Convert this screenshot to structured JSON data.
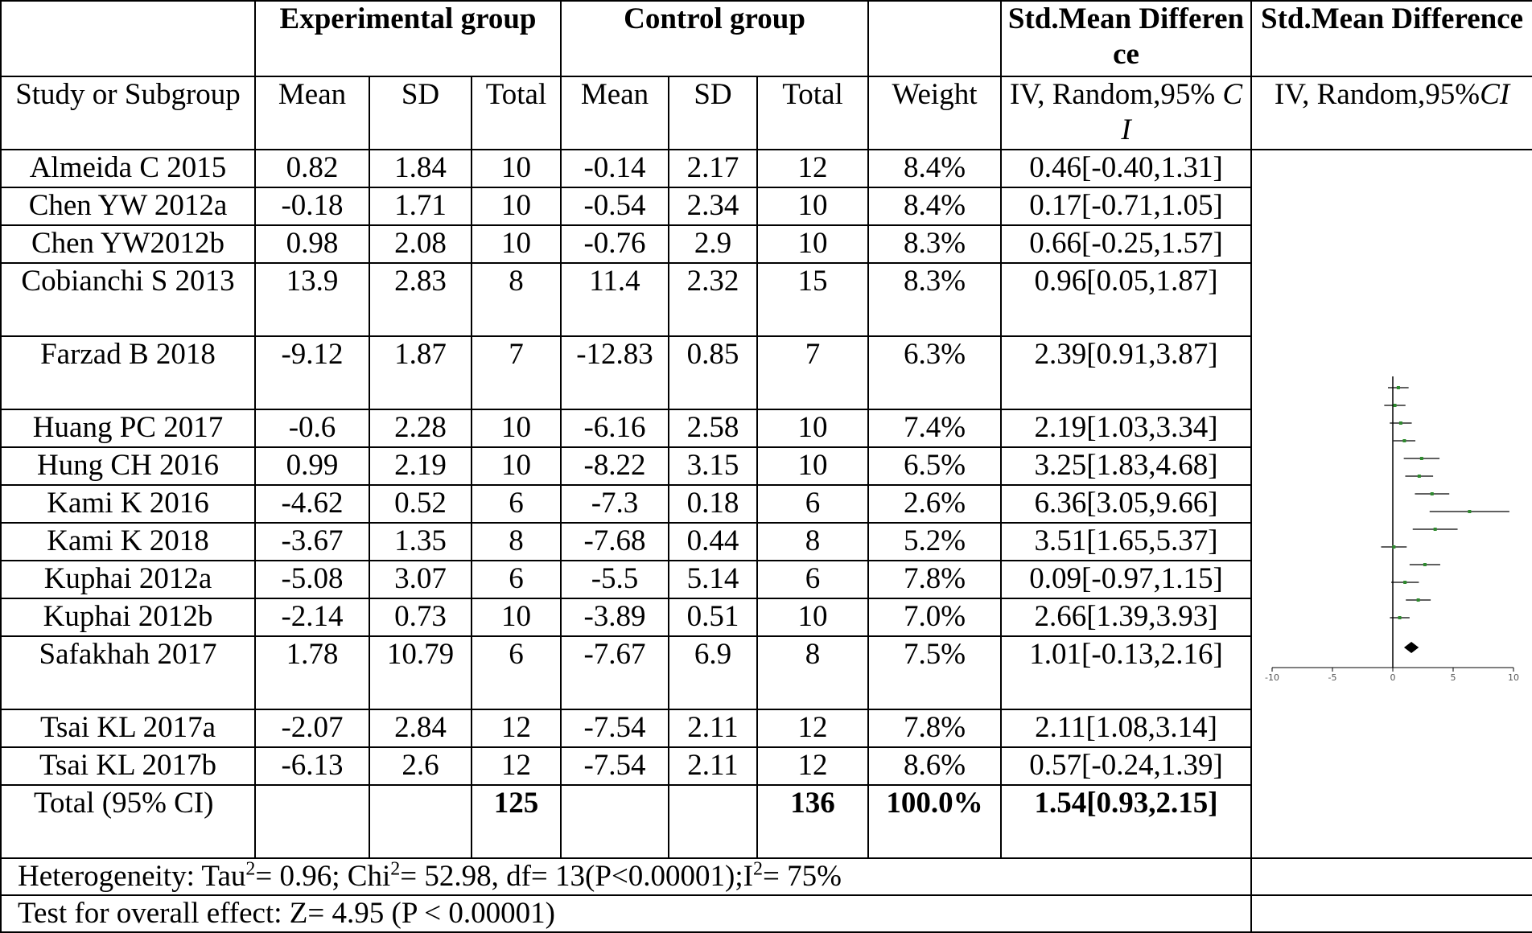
{
  "header": {
    "exp_group": "Experimental group",
    "ctrl_group": "Control group",
    "smd_col": "Std.Mean Difference",
    "smd_plot": "Std.Mean Difference",
    "study": "Study or Subgroup",
    "mean1": "Mean",
    "sd1": "SD",
    "total1": "Total",
    "mean2": "Mean",
    "sd2": "SD",
    "total2": "Total",
    "weight": "Weight",
    "iv1": "IV, Random,95% ",
    "iv1_ci": "CI",
    "iv2": "IV, Random,95%",
    "iv2_ci": "CI"
  },
  "rows": [
    {
      "study": "Almeida C 2015",
      "m1": "0.82",
      "sd1": "1.84",
      "n1": "10",
      "m2": "-0.14",
      "sd2": "2.17",
      "n2": "12",
      "weight": "8.4%",
      "smd": "0.46[-0.40,1.31]"
    },
    {
      "study": "Chen YW 2012a",
      "m1": "-0.18",
      "sd1": "1.71",
      "n1": "10",
      "m2": "-0.54",
      "sd2": "2.34",
      "n2": "10",
      "weight": "8.4%",
      "smd": "0.17[-0.71,1.05]"
    },
    {
      "study": "Chen YW2012b",
      "m1": "0.98",
      "sd1": "2.08",
      "n1": "10",
      "m2": "-0.76",
      "sd2": "2.9",
      "n2": "10",
      "weight": "8.3%",
      "smd": "0.66[-0.25,1.57]"
    },
    {
      "study": "Cobianchi S 2013",
      "m1": "13.9",
      "sd1": "2.83",
      "n1": "8",
      "m2": "11.4",
      "sd2": "2.32",
      "n2": "15",
      "weight": "8.3%",
      "smd": "0.96[0.05,1.87]"
    },
    {
      "study": "Farzad B 2018",
      "m1": "-9.12",
      "sd1": "1.87",
      "n1": "7",
      "m2": "-12.83",
      "sd2": "0.85",
      "n2": "7",
      "weight": "6.3%",
      "smd": "2.39[0.91,3.87]"
    },
    {
      "study": "Huang PC 2017",
      "m1": "-0.6",
      "sd1": "2.28",
      "n1": "10",
      "m2": "-6.16",
      "sd2": "2.58",
      "n2": "10",
      "weight": "7.4%",
      "smd": "2.19[1.03,3.34]"
    },
    {
      "study": "Hung CH 2016",
      "m1": "0.99",
      "sd1": "2.19",
      "n1": "10",
      "m2": "-8.22",
      "sd2": "3.15",
      "n2": "10",
      "weight": "6.5%",
      "smd": "3.25[1.83,4.68]"
    },
    {
      "study": "Kami K 2016",
      "m1": "-4.62",
      "sd1": "0.52",
      "n1": "6",
      "m2": "-7.3",
      "sd2": "0.18",
      "n2": "6",
      "weight": "2.6%",
      "smd": "6.36[3.05,9.66]"
    },
    {
      "study": "Kami K 2018",
      "m1": "-3.67",
      "sd1": "1.35",
      "n1": "8",
      "m2": "-7.68",
      "sd2": "0.44",
      "n2": "8",
      "weight": "5.2%",
      "smd": "3.51[1.65,5.37]"
    },
    {
      "study": "Kuphai 2012a",
      "m1": "-5.08",
      "sd1": "3.07",
      "n1": "6",
      "m2": "-5.5",
      "sd2": "5.14",
      "n2": "6",
      "weight": "7.8%",
      "smd": "0.09[-0.97,1.15]"
    },
    {
      "study": "Kuphai 2012b",
      "m1": "-2.14",
      "sd1": "0.73",
      "n1": "10",
      "m2": "-3.89",
      "sd2": "0.51",
      "n2": "10",
      "weight": "7.0%",
      "smd": "2.66[1.39,3.93]"
    },
    {
      "study": "Safakhah 2017",
      "m1": "1.78",
      "sd1": "10.79",
      "n1": "6",
      "m2": "-7.67",
      "sd2": "6.9",
      "n2": "8",
      "weight": "7.5%",
      "smd": "1.01[-0.13,2.16]"
    },
    {
      "study": "Tsai KL 2017a",
      "m1": "-2.07",
      "sd1": "2.84",
      "n1": "12",
      "m2": "-7.54",
      "sd2": "2.11",
      "n2": "12",
      "weight": "7.8%",
      "smd": "2.11[1.08,3.14]"
    },
    {
      "study": "Tsai KL 2017b",
      "m1": "-6.13",
      "sd1": "2.6",
      "n1": "12",
      "m2": "-7.54",
      "sd2": "2.11",
      "n2": "12",
      "weight": "8.6%",
      "smd": "0.57[-0.24,1.39]"
    }
  ],
  "total_row": {
    "label": "Total (95% CI)",
    "n1": "125",
    "n2": "136",
    "weight": "100.0%",
    "smd": "1.54[0.93,2.15]"
  },
  "footer": {
    "heterogeneity_prefix": "Heterogeneity: Tau",
    "tau_sup": "2",
    "heterogeneity_mid": "= 0.96; Chi",
    "chi_sup": "2",
    "heterogeneity_mid2": "= 52.98, df= 13(P<0.00001);I",
    "i_sup": "2",
    "heterogeneity_end": "= 75%",
    "overall_effect": "Test for overall effect: Z= 4.95 (P < 0.00001)"
  },
  "chart_data": {
    "type": "scatter",
    "title": "",
    "xlabel": "",
    "ylabel": "",
    "xlim": [
      -10,
      10
    ],
    "x_ticks": [
      "-10",
      "-5",
      "0",
      "5",
      "10"
    ],
    "x_tick_values": [
      -10,
      -5,
      0,
      5,
      10
    ],
    "marker_color": "#2e8b2e",
    "line_color": "#000000",
    "series": [
      {
        "points": [
          {
            "est": 0.46,
            "lo": -0.4,
            "hi": 1.31
          },
          {
            "est": 0.17,
            "lo": -0.71,
            "hi": 1.05
          },
          {
            "est": 0.66,
            "lo": -0.25,
            "hi": 1.57
          },
          {
            "est": 0.96,
            "lo": 0.05,
            "hi": 1.87
          },
          {
            "est": 2.39,
            "lo": 0.91,
            "hi": 3.87
          },
          {
            "est": 2.19,
            "lo": 1.03,
            "hi": 3.34
          },
          {
            "est": 3.25,
            "lo": 1.83,
            "hi": 4.68
          },
          {
            "est": 6.36,
            "lo": 3.05,
            "hi": 9.66
          },
          {
            "est": 3.51,
            "lo": 1.65,
            "hi": 5.37
          },
          {
            "est": 0.09,
            "lo": -0.97,
            "hi": 1.15
          },
          {
            "est": 2.66,
            "lo": 1.39,
            "hi": 3.93
          },
          {
            "est": 1.01,
            "lo": -0.13,
            "hi": 2.16
          },
          {
            "est": 2.11,
            "lo": 1.08,
            "hi": 3.14
          },
          {
            "est": 0.57,
            "lo": -0.24,
            "hi": 1.39
          }
        ]
      }
    ],
    "summary": {
      "est": 1.54,
      "lo": 0.93,
      "hi": 2.15
    }
  }
}
